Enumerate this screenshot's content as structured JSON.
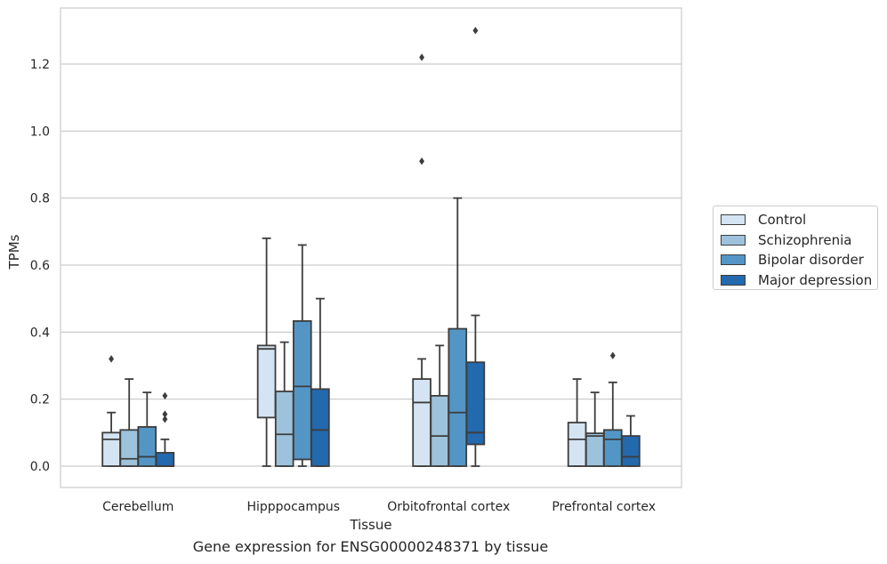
{
  "chart_data": {
    "type": "box",
    "title": "",
    "caption": "Gene expression for ENSG00000248371 by tissue",
    "xlabel": "Tissue",
    "ylabel": "TPMs",
    "ylim": [
      -0.065,
      1.37
    ],
    "yticks": [
      "0.0",
      "0.2",
      "0.4",
      "0.6",
      "0.8",
      "1.0",
      "1.2"
    ],
    "grid": "horizontal",
    "legend_position": "right",
    "categories": [
      "Cerebellum",
      "Hipppocampus",
      "Orbitofrontal cortex",
      "Prefrontal cortex"
    ],
    "series": [
      {
        "name": "Control",
        "color": "#d4e4f3",
        "boxes": [
          {
            "whislo": 0.0,
            "q1": 0.0,
            "med": 0.08,
            "q3": 0.1,
            "whishi": 0.16,
            "fliers": [
              0.32
            ]
          },
          {
            "whislo": 0.0,
            "q1": 0.145,
            "med": 0.35,
            "q3": 0.36,
            "whishi": 0.68,
            "fliers": []
          },
          {
            "whislo": 0.0,
            "q1": 0.0,
            "med": 0.19,
            "q3": 0.26,
            "whishi": 0.32,
            "fliers": [
              0.91,
              1.22
            ]
          },
          {
            "whislo": 0.0,
            "q1": 0.0,
            "med": 0.08,
            "q3": 0.13,
            "whishi": 0.26,
            "fliers": []
          }
        ]
      },
      {
        "name": "Schizophrenia",
        "color": "#9dc2db",
        "boxes": [
          {
            "whislo": 0.0,
            "q1": 0.0,
            "med": 0.022,
            "q3": 0.108,
            "whishi": 0.26,
            "fliers": []
          },
          {
            "whislo": 0.0,
            "q1": 0.0,
            "med": 0.095,
            "q3": 0.223,
            "whishi": 0.37,
            "fliers": []
          },
          {
            "whislo": 0.0,
            "q1": 0.0,
            "med": 0.09,
            "q3": 0.21,
            "whishi": 0.36,
            "fliers": []
          },
          {
            "whislo": 0.0,
            "q1": 0.0,
            "med": 0.09,
            "q3": 0.098,
            "whishi": 0.22,
            "fliers": []
          }
        ]
      },
      {
        "name": "Bipolar disorder",
        "color": "#5396c6",
        "boxes": [
          {
            "whislo": 0.0,
            "q1": 0.0,
            "med": 0.028,
            "q3": 0.117,
            "whishi": 0.22,
            "fliers": []
          },
          {
            "whislo": 0.0,
            "q1": 0.02,
            "med": 0.238,
            "q3": 0.433,
            "whishi": 0.66,
            "fliers": []
          },
          {
            "whislo": 0.0,
            "q1": 0.0,
            "med": 0.16,
            "q3": 0.41,
            "whishi": 0.8,
            "fliers": []
          },
          {
            "whislo": 0.0,
            "q1": 0.0,
            "med": 0.08,
            "q3": 0.108,
            "whishi": 0.25,
            "fliers": [
              0.33
            ]
          }
        ]
      },
      {
        "name": "Major depression",
        "color": "#2369ad",
        "boxes": [
          {
            "whislo": 0.0,
            "q1": 0.0,
            "med": 0.0,
            "q3": 0.04,
            "whishi": 0.08,
            "fliers": [
              0.14,
              0.155,
              0.21
            ]
          },
          {
            "whislo": 0.0,
            "q1": 0.0,
            "med": 0.108,
            "q3": 0.23,
            "whishi": 0.5,
            "fliers": []
          },
          {
            "whislo": 0.0,
            "q1": 0.065,
            "med": 0.1,
            "q3": 0.31,
            "whishi": 0.45,
            "fliers": [
              1.3
            ]
          },
          {
            "whislo": 0.0,
            "q1": 0.0,
            "med": 0.028,
            "q3": 0.09,
            "whishi": 0.15,
            "fliers": []
          }
        ]
      }
    ]
  }
}
